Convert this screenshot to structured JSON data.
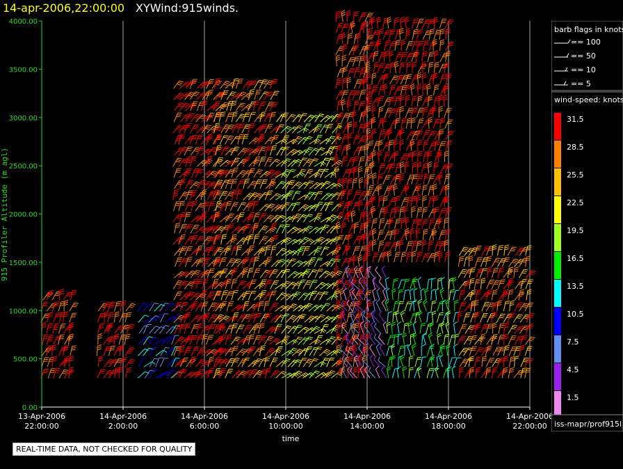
{
  "header": {
    "datetime": "14-apr-2006,22:00:00",
    "title": "XYWind:915winds."
  },
  "disclaimer": "REAL-TIME DATA, NOT CHECKED FOR QUALITY",
  "source_label": "iss-mapr/prof915l",
  "barb_legend": {
    "title": "barb flags in knots",
    "items": [
      {
        "label": "== 100"
      },
      {
        "label": "== 50"
      },
      {
        "label": "== 10"
      },
      {
        "label": "== 5"
      }
    ]
  },
  "speed_legend": {
    "title": "wind-speed: knots",
    "entries": [
      {
        "label": "31.5",
        "color": "#ff0000"
      },
      {
        "label": "28.5",
        "color": "#ff8000"
      },
      {
        "label": "25.5",
        "color": "#ffc000"
      },
      {
        "label": "22.5",
        "color": "#ffff00"
      },
      {
        "label": "19.5",
        "color": "#a0ff20"
      },
      {
        "label": "16.5",
        "color": "#00ee00"
      },
      {
        "label": "13.5",
        "color": "#00ffff"
      },
      {
        "label": "10.5",
        "color": "#0000ff"
      },
      {
        "label": "7.5",
        "color": "#6090ee"
      },
      {
        "label": "4.5",
        "color": "#9a20f0"
      },
      {
        "label": "1.5",
        "color": "#ee88ee"
      }
    ]
  },
  "chart_data": {
    "type": "scatter",
    "title": "XYWind:915winds.",
    "subtitle": "14-apr-2006,22:00:00",
    "xlabel": "time",
    "ylabel": "915 Profiler Altitude (m agl)",
    "ylim": [
      0,
      4000
    ],
    "y_ticks": [
      "0.00",
      "500.00",
      "1000.00",
      "1500.00",
      "2000.00",
      "2500.00",
      "3000.00",
      "3500.00",
      "4000.00"
    ],
    "x_ticks": [
      {
        "date": "13-Apr-2006",
        "time": "22:00:00"
      },
      {
        "date": "14-Apr-2006",
        "time": "2:00:00"
      },
      {
        "date": "14-Apr-2006",
        "time": "6:00:00"
      },
      {
        "date": "14-Apr-2006",
        "time": "10:00:00"
      },
      {
        "date": "14-Apr-2006",
        "time": "14:00:00"
      },
      {
        "date": "14-Apr-2006",
        "time": "18:00:00"
      },
      {
        "date": "14-Apr-2006",
        "time": "22:00:00"
      }
    ],
    "grid": "vertical",
    "series": [
      {
        "x": "13-Apr-2006 22:00-23:30",
        "altitude_range": [
          300,
          1200
        ],
        "speed_knots": 31.5,
        "dir_deg": 200
      },
      {
        "x": "14-Apr-2006 00:45-02:15",
        "altitude_range": [
          300,
          1100
        ],
        "speed_knots": 31.5,
        "dir_deg": 200
      },
      {
        "x": "14-Apr-2006 02:45-04:30",
        "altitude_range": [
          300,
          1000
        ],
        "speed_knots": 10.5,
        "dir_deg": 220
      },
      {
        "x": "14-Apr-2006 04:30-06:30",
        "altitude_range": [
          300,
          3400
        ],
        "speed_knots": 31.5,
        "dir_deg": 210
      },
      {
        "x": "14-Apr-2006 06:30-09:30",
        "altitude_range": [
          300,
          3300
        ],
        "speed_knots": 28.5,
        "dir_deg": 210
      },
      {
        "x": "14-Apr-2006 09:30-12:30",
        "altitude_range": [
          300,
          3000
        ],
        "speed_knots": 22.5,
        "dir_deg": 220
      },
      {
        "x": "14-Apr-2006 12:30-14:00",
        "altitude_range": [
          300,
          4000
        ],
        "speed_knots": 31.5,
        "dir_deg": 190
      },
      {
        "x": "14-Apr-2006 13:00-15:00",
        "altitude_range": [
          300,
          1400
        ],
        "speed_knots": 4.5,
        "dir_deg": 150
      },
      {
        "x": "14-Apr-2006 14:00-18:00",
        "altitude_range": [
          1500,
          4000
        ],
        "speed_knots": 31.5,
        "dir_deg": 190
      },
      {
        "x": "14-Apr-2006 15:00-18:30",
        "altitude_range": [
          300,
          1300
        ],
        "speed_knots": 16.5,
        "dir_deg": 180
      },
      {
        "x": "14-Apr-2006 18:30-22:00",
        "altitude_range": [
          300,
          1600
        ],
        "speed_knots": 28.5,
        "dir_deg": 200
      }
    ]
  }
}
